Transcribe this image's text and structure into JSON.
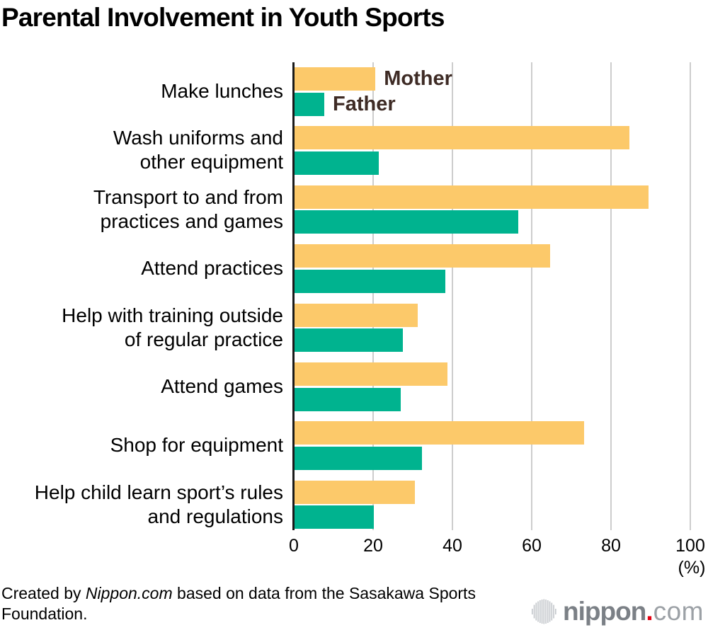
{
  "title": "Parental Involvement in Youth Sports",
  "chart_data": {
    "type": "bar",
    "orientation": "horizontal",
    "unit": "%",
    "categories": [
      [
        "Make lunches"
      ],
      [
        "Wash uniforms and",
        "other equipment"
      ],
      [
        "Transport to and from",
        "practices and games"
      ],
      [
        "Attend practices"
      ],
      [
        "Help with training outside",
        "of regular practice"
      ],
      [
        "Attend games"
      ],
      [
        "Shop for equipment"
      ],
      [
        "Help child learn sport’s rules",
        "and regulations"
      ]
    ],
    "series": [
      {
        "name": "Mother",
        "color": "#fcc96a",
        "values": [
          20.4,
          84.5,
          89.3,
          64.5,
          31.0,
          38.5,
          73.0,
          30.4
        ]
      },
      {
        "name": "Father",
        "color": "#00b38f",
        "values": [
          7.5,
          21.2,
          56.5,
          38.0,
          27.4,
          26.7,
          32.1,
          20.0
        ]
      }
    ],
    "xlim": [
      0,
      100
    ],
    "xticks": [
      "0",
      "20",
      "40",
      "60",
      "80",
      "100"
    ],
    "xtick_values": [
      0,
      20,
      40,
      60,
      80,
      100
    ],
    "axis_unit_label": "(%)",
    "grid": "vertical-gridlines",
    "legend": {
      "position": "inline-after-first-row-bars",
      "labels": [
        "Mother",
        "Father"
      ],
      "text_color": "#3e2b25"
    }
  },
  "footer": {
    "credit_prefix": "Created by ",
    "credit_source": "Nippon.com",
    "credit_suffix": " based on data from the Sasakawa Sports Foundation."
  },
  "logo": {
    "icon": "soundwave-icon",
    "name": "nippon",
    "dot": ".",
    "tld": "com",
    "colors": {
      "name": "#7b8086",
      "tld": "#9ca1a6",
      "dot": "#e60012",
      "icon": "#c2c6ca"
    }
  },
  "colors": {
    "background": "#ffffff",
    "gridline": "#cdcdcd",
    "axis": "#1a1a1a",
    "text": "#000000"
  }
}
